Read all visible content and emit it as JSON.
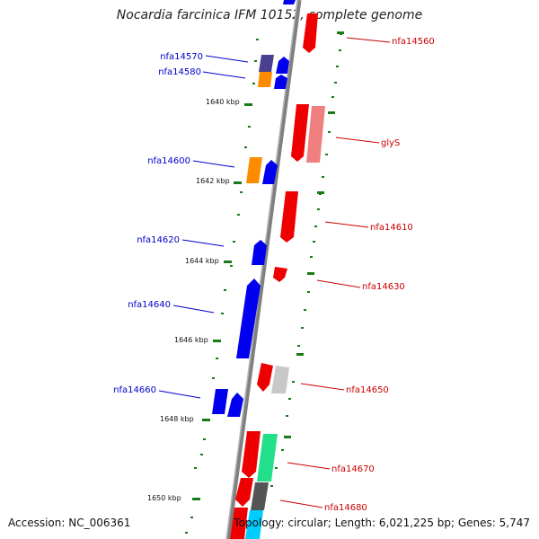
{
  "title": "Nocardia farcinica IFM 10152, complete genome",
  "accession_text": "Accession: NC_006361",
  "topology_text": "Topology: circular; Length: 6,021,225 bp; Genes: 5,747",
  "colors": {
    "forward_label": "#0000cc",
    "reverse_label": "#cc0000",
    "tick": "#1a7a1a",
    "backbone": "#808080"
  },
  "ticks": [
    "1640 kbp",
    "1642 kbp",
    "1644 kbp",
    "1646 kbp",
    "1648 kbp",
    "1650 kbp"
  ],
  "forward_labels": [
    "nfa14570",
    "nfa14580",
    "nfa14600",
    "nfa14620",
    "nfa14640",
    "nfa14660"
  ],
  "reverse_labels": [
    "nfa14560",
    "glyS",
    "nfa14610",
    "nfa14630",
    "nfa14650",
    "nfa14670",
    "nfa14680"
  ]
}
